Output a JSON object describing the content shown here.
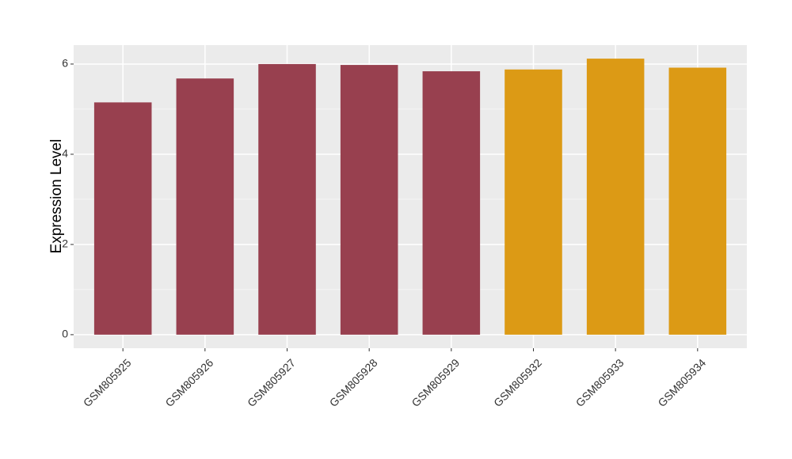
{
  "chart_data": {
    "type": "bar",
    "y_label": "Expression Level",
    "categories": [
      "GSM805925",
      "GSM805926",
      "GSM805927",
      "GSM805928",
      "GSM805929",
      "GSM805932",
      "GSM805933",
      "GSM805934"
    ],
    "values": [
      5.15,
      5.68,
      6.0,
      5.98,
      5.84,
      5.88,
      6.12,
      5.92
    ],
    "colors": [
      "#98404f",
      "#98404f",
      "#98404f",
      "#98404f",
      "#98404f",
      "#dc9a15",
      "#dc9a15",
      "#dc9a15"
    ],
    "ylim": [
      -0.3,
      6.42
    ],
    "yticks": [
      0,
      2,
      4,
      6
    ],
    "grid": true
  }
}
